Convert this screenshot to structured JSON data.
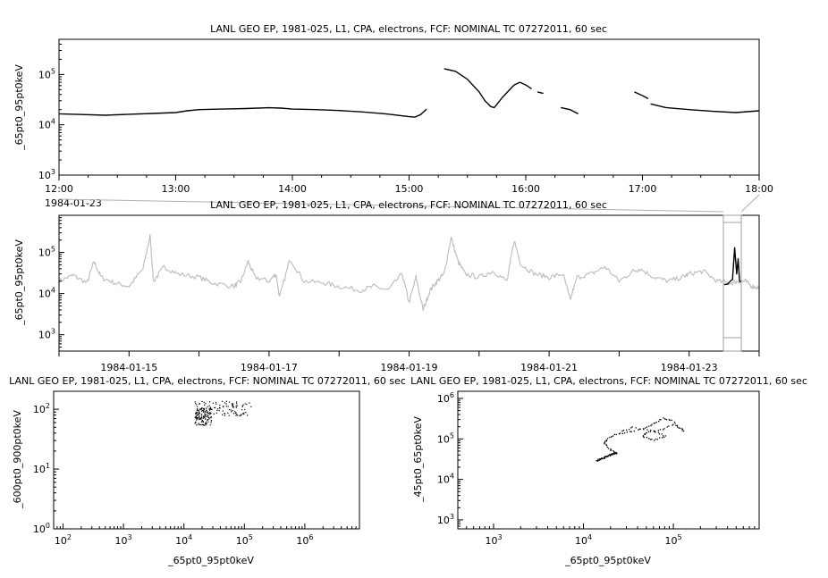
{
  "chart_data": [
    {
      "id": "top",
      "type": "line",
      "title": "LANL GEO EP, 1981-025, L1, CPA, electrons, FCF: NOMINAL TC 07272011, 60 sec",
      "ylabel": "_65pt0_95pt0keV",
      "y_scale": "log",
      "ylim": [
        1000,
        500000
      ],
      "y_ticks": [
        {
          "base": "10",
          "exp": "3",
          "v": 1000
        },
        {
          "base": "10",
          "exp": "4",
          "v": 10000
        },
        {
          "base": "10",
          "exp": "5",
          "v": 100000
        }
      ],
      "x_range_hours": [
        12,
        18
      ],
      "x_ticks": [
        {
          "label": "12:00",
          "v": 12
        },
        {
          "label": "13:00",
          "v": 13
        },
        {
          "label": "14:00",
          "v": 14
        },
        {
          "label": "15:00",
          "v": 15
        },
        {
          "label": "16:00",
          "v": 16
        },
        {
          "label": "17:00",
          "v": 17
        },
        {
          "label": "18:00",
          "v": 18
        }
      ],
      "date_label": "1984-01-23",
      "series": [
        {
          "color": "#000000",
          "segments": [
            [
              [
                12.0,
                16500
              ],
              [
                12.2,
                16000
              ],
              [
                12.4,
                15500
              ],
              [
                12.6,
                16200
              ],
              [
                12.8,
                16800
              ],
              [
                13.0,
                17500
              ],
              [
                13.1,
                19000
              ],
              [
                13.2,
                20000
              ],
              [
                13.4,
                20500
              ],
              [
                13.6,
                21000
              ],
              [
                13.8,
                21800
              ],
              [
                13.9,
                21500
              ],
              [
                14.0,
                20500
              ],
              [
                14.2,
                20000
              ],
              [
                14.4,
                19200
              ],
              [
                14.6,
                18000
              ],
              [
                14.8,
                16500
              ],
              [
                15.0,
                14500
              ],
              [
                15.05,
                14200
              ],
              [
                15.1,
                16000
              ],
              [
                15.15,
                20500
              ]
            ],
            [
              [
                15.3,
                130000
              ],
              [
                15.4,
                115000
              ],
              [
                15.5,
                80000
              ],
              [
                15.6,
                45000
              ],
              [
                15.65,
                30000
              ],
              [
                15.7,
                23000
              ],
              [
                15.73,
                22000
              ],
              [
                15.8,
                35000
              ],
              [
                15.9,
                62000
              ],
              [
                15.95,
                70000
              ],
              [
                16.0,
                62000
              ],
              [
                16.05,
                52000
              ]
            ],
            [
              [
                16.1,
                45000
              ],
              [
                16.15,
                42000
              ]
            ],
            [
              [
                16.3,
                22000
              ],
              [
                16.38,
                20000
              ],
              [
                16.45,
                16500
              ]
            ],
            [
              [
                16.93,
                45000
              ],
              [
                17.0,
                38000
              ],
              [
                17.05,
                33000
              ]
            ],
            [
              [
                17.07,
                26000
              ],
              [
                17.2,
                22000
              ],
              [
                17.4,
                20000
              ],
              [
                17.6,
                18500
              ],
              [
                17.8,
                17500
              ],
              [
                18.0,
                19000
              ]
            ]
          ]
        }
      ]
    },
    {
      "id": "overview",
      "type": "line",
      "title": "LANL GEO EP, 1981-025, L1, CPA, electrons, FCF: NOMINAL TC 07272011, 60 sec",
      "ylabel": "_65pt0_95pt0keV",
      "y_scale": "log",
      "ylim": [
        400,
        800000
      ],
      "y_ticks": [
        {
          "base": "10",
          "exp": "3",
          "v": 1000
        },
        {
          "base": "10",
          "exp": "4",
          "v": 10000
        },
        {
          "base": "10",
          "exp": "5",
          "v": 100000
        }
      ],
      "x_range_days": [
        0,
        10.0
      ],
      "x_ticks": [
        {
          "label": "1984-01-15",
          "v": 1.0
        },
        {
          "label": "1984-01-17",
          "v": 3.0
        },
        {
          "label": "1984-01-19",
          "v": 5.0
        },
        {
          "label": "1984-01-21",
          "v": 7.0
        },
        {
          "label": "1984-01-23",
          "v": 9.0
        }
      ],
      "series": [
        {
          "name": "",
          "color": "#c0c0c0",
          "points": [
            [
              0.0,
              20000
            ],
            [
              0.2,
              28000
            ],
            [
              0.4,
              18000
            ],
            [
              0.5,
              60000
            ],
            [
              0.6,
              25000
            ],
            [
              0.8,
              18000
            ],
            [
              1.0,
              15000
            ],
            [
              1.2,
              40000
            ],
            [
              1.3,
              250000
            ],
            [
              1.35,
              20000
            ],
            [
              1.5,
              45000
            ],
            [
              1.7,
              30000
            ],
            [
              2.0,
              25000
            ],
            [
              2.2,
              18000
            ],
            [
              2.5,
              15000
            ],
            [
              2.6,
              20000
            ],
            [
              2.7,
              60000
            ],
            [
              2.8,
              25000
            ],
            [
              3.0,
              20000
            ],
            [
              3.1,
              30000
            ],
            [
              3.15,
              8000
            ],
            [
              3.3,
              70000
            ],
            [
              3.5,
              20000
            ],
            [
              3.8,
              18000
            ],
            [
              4.0,
              15000
            ],
            [
              4.3,
              12000
            ],
            [
              4.5,
              15000
            ],
            [
              4.7,
              12000
            ],
            [
              4.9,
              30000
            ],
            [
              5.0,
              6000
            ],
            [
              5.1,
              25000
            ],
            [
              5.2,
              4000
            ],
            [
              5.3,
              12000
            ],
            [
              5.4,
              20000
            ],
            [
              5.5,
              30000
            ],
            [
              5.6,
              230000
            ],
            [
              5.7,
              60000
            ],
            [
              5.8,
              30000
            ],
            [
              6.0,
              25000
            ],
            [
              6.2,
              35000
            ],
            [
              6.4,
              20000
            ],
            [
              6.5,
              200000
            ],
            [
              6.6,
              50000
            ],
            [
              6.8,
              30000
            ],
            [
              7.0,
              25000
            ],
            [
              7.2,
              30000
            ],
            [
              7.3,
              7000
            ],
            [
              7.4,
              25000
            ],
            [
              7.6,
              30000
            ],
            [
              7.8,
              45000
            ],
            [
              8.0,
              20000
            ],
            [
              8.2,
              35000
            ],
            [
              8.3,
              40000
            ],
            [
              8.5,
              25000
            ],
            [
              8.7,
              20000
            ],
            [
              8.9,
              25000
            ],
            [
              9.0,
              30000
            ],
            [
              9.2,
              35000
            ],
            [
              9.4,
              20000
            ],
            [
              9.6,
              18000
            ],
            [
              9.7,
              20000
            ],
            [
              9.8,
              20000
            ],
            [
              9.9,
              15000
            ],
            [
              10.0,
              14000
            ]
          ]
        },
        {
          "name": "",
          "color": "#000000",
          "points": [
            [
              9.5,
              16500
            ],
            [
              9.55,
              17000
            ],
            [
              9.6,
              21000
            ],
            [
              9.62,
              22000
            ],
            [
              9.65,
              130000
            ],
            [
              9.68,
              30000
            ],
            [
              9.7,
              70000
            ],
            [
              9.72,
              20000
            ],
            [
              9.75,
              19000
            ]
          ]
        }
      ]
    },
    {
      "id": "scatter-left",
      "type": "scatter",
      "title": "LANL GEO EP, 1981-025, L1, CPA, electrons, FCF: NOMINAL TC 07272011, 60 sec",
      "xlabel": "_65pt0_95pt0keV",
      "ylabel": "_600pt0_900pt0keV",
      "x_scale": "log",
      "y_scale": "log",
      "xlim": [
        70,
        8000000
      ],
      "ylim": [
        1,
        200
      ],
      "x_ticks": [
        {
          "base": "10",
          "exp": "2",
          "v": 100
        },
        {
          "base": "10",
          "exp": "3",
          "v": 1000
        },
        {
          "base": "10",
          "exp": "4",
          "v": 10000
        },
        {
          "base": "10",
          "exp": "5",
          "v": 100000
        },
        {
          "base": "10",
          "exp": "6",
          "v": 1000000
        }
      ],
      "y_ticks": [
        {
          "base": "10",
          "exp": "0",
          "v": 1
        },
        {
          "base": "10",
          "exp": "1",
          "v": 10
        },
        {
          "base": "10",
          "exp": "2",
          "v": 100
        }
      ],
      "cluster": {
        "x_range": [
          14000,
          130000
        ],
        "y_range": [
          55,
          140
        ],
        "count": 220
      }
    },
    {
      "id": "scatter-right",
      "type": "scatter",
      "title": "LANL GEO EP, 1981-025, L1, CPA, electrons, FCF: NOMINAL TC 07272011, 60 sec",
      "xlabel": "_65pt0_95pt0keV",
      "ylabel": "_45pt0_65pt0keV",
      "x_scale": "log",
      "y_scale": "log",
      "xlim": [
        400,
        900000
      ],
      "ylim": [
        600,
        1500000
      ],
      "x_ticks": [
        {
          "base": "10",
          "exp": "3",
          "v": 1000
        },
        {
          "base": "10",
          "exp": "4",
          "v": 10000
        },
        {
          "base": "10",
          "exp": "5",
          "v": 100000
        }
      ],
      "y_ticks": [
        {
          "base": "10",
          "exp": "3",
          "v": 1000
        },
        {
          "base": "10",
          "exp": "4",
          "v": 10000
        },
        {
          "base": "10",
          "exp": "5",
          "v": 100000
        },
        {
          "base": "10",
          "exp": "6",
          "v": 1000000
        }
      ],
      "trace": [
        [
          14000,
          30000
        ],
        [
          16000,
          34000
        ],
        [
          18000,
          38000
        ],
        [
          21000,
          44000
        ],
        [
          23000,
          46000
        ],
        [
          20000,
          55000
        ],
        [
          17000,
          80000
        ],
        [
          18000,
          100000
        ],
        [
          22000,
          130000
        ],
        [
          30000,
          150000
        ],
        [
          45000,
          180000
        ],
        [
          60000,
          250000
        ],
        [
          75000,
          330000
        ],
        [
          95000,
          300000
        ],
        [
          130000,
          160000
        ],
        [
          100000,
          230000
        ],
        [
          70000,
          170000
        ],
        [
          50000,
          150000
        ],
        [
          45000,
          120000
        ],
        [
          60000,
          95000
        ],
        [
          80000,
          120000
        ],
        [
          60000,
          160000
        ],
        [
          35000,
          200000
        ],
        [
          25000,
          150000
        ]
      ]
    }
  ]
}
